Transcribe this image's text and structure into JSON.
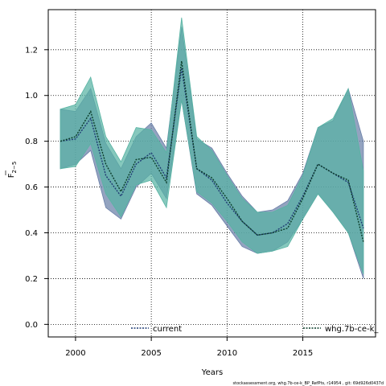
{
  "chart_data": {
    "type": "area",
    "xlabel": "Years",
    "ylabel_main": "F",
    "ylabel_sub": "2−5",
    "xlim": [
      1998.2,
      2019.8
    ],
    "ylim": [
      -0.055,
      1.375
    ],
    "x_ticks": [
      2000,
      2005,
      2010,
      2015
    ],
    "y_ticks": [
      0.0,
      0.2,
      0.4,
      0.6,
      0.8,
      1.0,
      1.2
    ],
    "grid": true,
    "x": [
      1999,
      2000,
      2001,
      2002,
      2003,
      2004,
      2005,
      2006,
      2007,
      2008,
      2009,
      2010,
      2011,
      2012,
      2013,
      2014,
      2015,
      2016,
      2017,
      2018,
      2019
    ],
    "series": [
      {
        "name": "current",
        "line_color": "#1f3b73",
        "fill_color": "#6a7fa8",
        "values": [
          0.8,
          0.81,
          0.9,
          0.65,
          0.56,
          0.7,
          0.75,
          0.64,
          1.12,
          0.68,
          0.63,
          0.53,
          0.45,
          0.39,
          0.4,
          0.44,
          0.56,
          0.7,
          0.66,
          0.62,
          0.42
        ],
        "lower": [
          0.68,
          0.7,
          0.76,
          0.51,
          0.46,
          0.6,
          0.66,
          0.55,
          0.98,
          0.57,
          0.52,
          0.43,
          0.34,
          0.31,
          0.32,
          0.36,
          0.46,
          0.57,
          0.49,
          0.4,
          0.2
        ],
        "upper": [
          0.94,
          0.93,
          1.03,
          0.79,
          0.68,
          0.82,
          0.88,
          0.77,
          1.3,
          0.81,
          0.77,
          0.66,
          0.56,
          0.49,
          0.5,
          0.54,
          0.66,
          0.86,
          0.89,
          1.03,
          0.8
        ]
      },
      {
        "name": "whg.7b-ce-k_",
        "line_color": "#0b3d2a",
        "fill_color": "#57b3a3",
        "values": [
          0.8,
          0.82,
          0.93,
          0.7,
          0.58,
          0.72,
          0.73,
          0.62,
          1.15,
          0.68,
          0.64,
          0.55,
          0.45,
          0.39,
          0.4,
          0.42,
          0.55,
          0.7,
          0.66,
          0.63,
          0.36
        ],
        "lower": [
          0.68,
          0.69,
          0.79,
          0.57,
          0.47,
          0.61,
          0.63,
          0.51,
          0.98,
          0.58,
          0.53,
          0.45,
          0.36,
          0.31,
          0.32,
          0.34,
          0.46,
          0.57,
          0.49,
          0.4,
          0.22
        ],
        "upper": [
          0.94,
          0.96,
          1.08,
          0.82,
          0.71,
          0.86,
          0.85,
          0.75,
          1.34,
          0.82,
          0.76,
          0.65,
          0.55,
          0.49,
          0.49,
          0.52,
          0.65,
          0.86,
          0.9,
          1.03,
          0.67
        ]
      }
    ],
    "legend": [
      "current",
      "whg.7b-ce-k_"
    ],
    "legend_placement": "bottom",
    "footnote": "stockassessment.org, whg.7b-ce-k_BP_RefPts, r14954 , git: 69d926d0437d"
  }
}
